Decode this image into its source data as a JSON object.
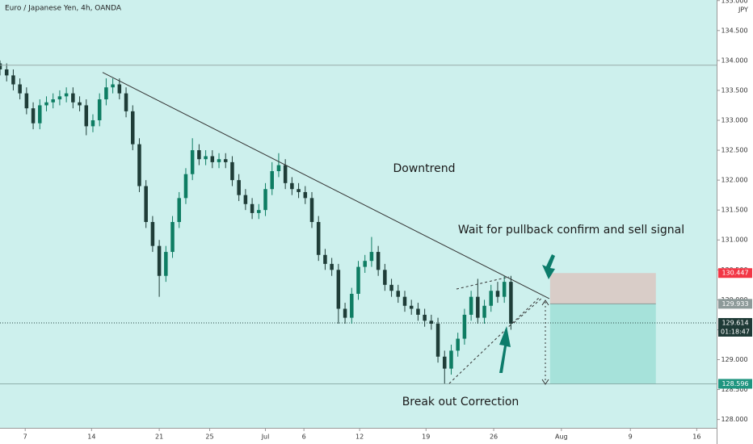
{
  "chart_data": {
    "type": "candlestick",
    "title": "Euro / Japanese Yen, 4h, OANDA",
    "currency": "JPY",
    "up_color": "#0e7d63",
    "down_color": "#1f3d38",
    "xlim": [
      0,
      54
    ],
    "ylim": [
      127.86,
      135.01
    ],
    "xticks": [
      {
        "value": 1.9,
        "label": "7"
      },
      {
        "value": 6.9,
        "label": "14"
      },
      {
        "value": 12.0,
        "label": "21"
      },
      {
        "value": 15.8,
        "label": "25"
      },
      {
        "value": 20.0,
        "label": "Jul"
      },
      {
        "value": 22.9,
        "label": "6"
      },
      {
        "value": 27.1,
        "label": "12"
      },
      {
        "value": 32.1,
        "label": "19"
      },
      {
        "value": 37.2,
        "label": "26"
      },
      {
        "value": 42.3,
        "label": "Aug"
      },
      {
        "value": 47.5,
        "label": "9"
      },
      {
        "value": 52.5,
        "label": "16"
      }
    ],
    "yticks": [
      {
        "value": 128,
        "label": "128.000"
      },
      {
        "value": 128.5,
        "label": "128.500"
      },
      {
        "value": 129,
        "label": "129.000"
      },
      {
        "value": 129.5,
        "label": "129.500"
      },
      {
        "value": 130,
        "label": "130.000"
      },
      {
        "value": 130.5,
        "label": "130.500"
      },
      {
        "value": 131,
        "label": "131.000"
      },
      {
        "value": 131.5,
        "label": "131.500"
      },
      {
        "value": 132,
        "label": "132.000"
      },
      {
        "value": 132.5,
        "label": "132.500"
      },
      {
        "value": 133,
        "label": "133.000"
      },
      {
        "value": 133.5,
        "label": "133.500"
      },
      {
        "value": 134,
        "label": "134.000"
      },
      {
        "value": 134.5,
        "label": "134.500"
      },
      {
        "value": 135,
        "label": "135.000"
      }
    ],
    "x": [
      0,
      0.5,
      1,
      1.5,
      2,
      2.5,
      3,
      3.5,
      4,
      4.5,
      5,
      5.5,
      6,
      6.5,
      7,
      7.5,
      8,
      8.5,
      9,
      9.5,
      10,
      10.5,
      11,
      11.5,
      12,
      12.5,
      13,
      13.5,
      14,
      14.5,
      15,
      15.5,
      16,
      16.5,
      17,
      17.5,
      18,
      18.5,
      19,
      19.5,
      20,
      20.5,
      21,
      21.5,
      22,
      22.5,
      23,
      23.5,
      24,
      24.5,
      25,
      25.5,
      26,
      26.5,
      27,
      27.5,
      28,
      28.5,
      29,
      29.5,
      30,
      30.5,
      31,
      31.5,
      32,
      32.5,
      33,
      33.5,
      34,
      34.5,
      35,
      35.5,
      36,
      36.5,
      37,
      37.5,
      38,
      38.5
    ],
    "open": [
      133.95,
      133.85,
      133.75,
      133.6,
      133.45,
      133.2,
      132.95,
      133.25,
      133.3,
      133.35,
      133.4,
      133.45,
      133.3,
      133.25,
      132.9,
      133.0,
      133.35,
      133.55,
      133.6,
      133.45,
      133.15,
      132.6,
      131.9,
      131.3,
      130.9,
      130.4,
      130.8,
      131.3,
      131.7,
      132.1,
      132.5,
      132.35,
      132.4,
      132.3,
      132.35,
      132.3,
      132.0,
      131.75,
      131.6,
      131.45,
      131.5,
      131.85,
      132.15,
      132.25,
      131.95,
      131.85,
      131.8,
      131.7,
      131.3,
      130.75,
      130.6,
      130.5,
      129.85,
      129.7,
      130.1,
      130.55,
      130.65,
      130.8,
      130.5,
      130.25,
      130.15,
      130.05,
      129.9,
      129.85,
      129.75,
      129.65,
      129.6,
      129.05,
      128.85,
      129.15,
      129.35,
      129.75,
      130.05,
      129.7,
      129.9,
      130.15,
      130.05,
      130.3
    ],
    "high": [
      134.0,
      133.95,
      133.85,
      133.7,
      133.55,
      133.3,
      133.35,
      133.4,
      133.45,
      133.5,
      133.55,
      133.55,
      133.4,
      133.35,
      133.1,
      133.45,
      133.7,
      133.7,
      133.7,
      133.55,
      133.25,
      132.7,
      132.0,
      131.4,
      131.0,
      130.9,
      131.4,
      131.8,
      132.2,
      132.7,
      132.6,
      132.5,
      132.5,
      132.45,
      132.45,
      132.4,
      132.1,
      131.85,
      131.7,
      131.6,
      131.95,
      132.3,
      132.45,
      132.35,
      132.05,
      131.95,
      131.9,
      131.8,
      131.4,
      130.85,
      130.7,
      130.6,
      129.95,
      130.2,
      130.65,
      130.75,
      131.05,
      130.9,
      130.6,
      130.35,
      130.25,
      130.15,
      130.0,
      129.95,
      129.85,
      129.75,
      129.7,
      129.15,
      129.25,
      129.45,
      129.85,
      130.15,
      130.35,
      130.0,
      130.25,
      130.3,
      130.4,
      130.4
    ],
    "low": [
      133.75,
      133.65,
      133.5,
      133.35,
      133.1,
      132.85,
      132.85,
      133.15,
      133.2,
      133.25,
      133.3,
      133.2,
      133.15,
      132.75,
      132.8,
      132.9,
      133.25,
      133.45,
      133.35,
      133.05,
      132.5,
      131.8,
      131.2,
      130.8,
      130.05,
      130.3,
      130.7,
      131.2,
      131.6,
      132.0,
      132.25,
      132.25,
      132.2,
      132.2,
      132.2,
      131.9,
      131.65,
      131.5,
      131.35,
      131.35,
      131.4,
      131.75,
      132.05,
      131.85,
      131.75,
      131.7,
      131.6,
      131.2,
      130.65,
      130.5,
      130.4,
      129.6,
      129.6,
      129.6,
      130.0,
      130.45,
      130.55,
      130.4,
      130.15,
      130.05,
      129.95,
      129.8,
      129.75,
      129.65,
      129.55,
      129.5,
      128.95,
      128.6,
      128.75,
      129.05,
      129.25,
      129.65,
      129.6,
      129.6,
      129.8,
      129.95,
      129.95,
      129.5
    ],
    "close": [
      133.85,
      133.75,
      133.6,
      133.45,
      133.2,
      132.95,
      133.25,
      133.3,
      133.35,
      133.4,
      133.45,
      133.3,
      133.25,
      132.9,
      133.0,
      133.35,
      133.55,
      133.6,
      133.45,
      133.15,
      132.6,
      131.9,
      131.3,
      130.9,
      130.4,
      130.8,
      131.3,
      131.7,
      132.1,
      132.5,
      132.35,
      132.4,
      132.3,
      132.35,
      132.3,
      132.0,
      131.75,
      131.6,
      131.45,
      131.5,
      131.85,
      132.15,
      132.25,
      131.95,
      131.85,
      131.8,
      131.7,
      131.3,
      130.75,
      130.6,
      130.5,
      129.85,
      129.7,
      130.1,
      130.55,
      130.65,
      130.8,
      130.5,
      130.25,
      130.15,
      130.05,
      129.9,
      129.85,
      129.75,
      129.65,
      129.6,
      129.05,
      128.85,
      129.15,
      129.35,
      129.75,
      130.05,
      129.7,
      129.9,
      130.15,
      130.05,
      130.3,
      129.6
    ],
    "hline": 133.92,
    "trendline": {
      "x": [
        7.73,
        41.39
      ],
      "y": [
        133.8,
        130.02
      ]
    },
    "position": {
      "x": [
        41.45,
        49.42
      ],
      "stop": 130.447,
      "entry": 129.933,
      "target": 128.596
    },
    "last_price": 129.614,
    "countdown": "01:18:47",
    "annotations": [
      "Downtrend",
      "Wait for pullback confirm and sell signal",
      "Break out Correction"
    ]
  }
}
